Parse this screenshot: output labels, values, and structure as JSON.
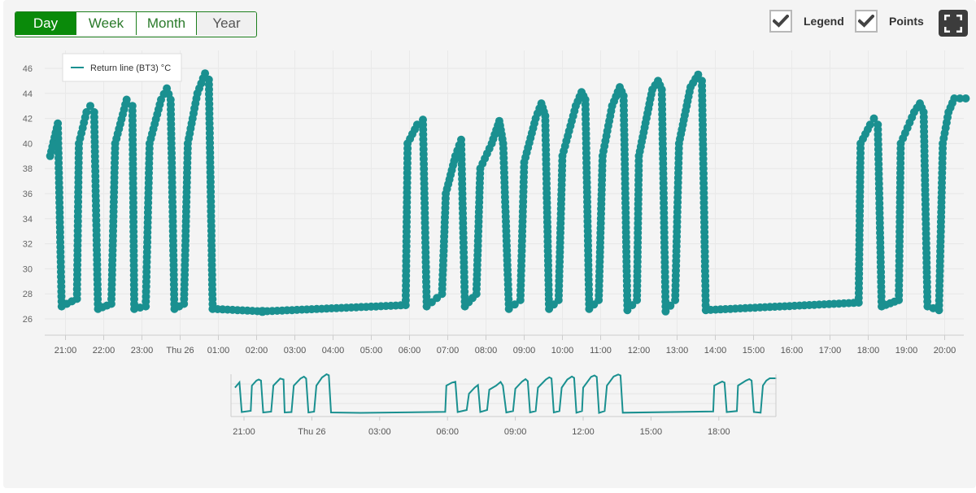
{
  "range_buttons": [
    {
      "label": "Day",
      "state": "active"
    },
    {
      "label": "Week",
      "state": "normal"
    },
    {
      "label": "Month",
      "state": "normal"
    },
    {
      "label": "Year",
      "state": "muted"
    }
  ],
  "toggles": {
    "legend": {
      "label": "Legend",
      "checked": true
    },
    "points": {
      "label": "Points",
      "checked": true
    }
  },
  "icons": {
    "checkbox": "check-icon",
    "fullscreen": "fullscreen-icon"
  },
  "colors": {
    "series": "#1a9090",
    "active_button": "#0a8a0a",
    "button_border": "#1d7f1d"
  },
  "chart_data": {
    "type": "line",
    "title": "",
    "xlabel": "",
    "ylabel": "",
    "legend": "top-left",
    "grid": true,
    "points_shown": true,
    "ylim": [
      25,
      47
    ],
    "xlim": [
      "20:35",
      "20:35 next day"
    ],
    "y_ticks": [
      26,
      28,
      30,
      32,
      34,
      36,
      38,
      40,
      42,
      44,
      46
    ],
    "x_tick_labels": [
      "21:00",
      "22:00",
      "23:00",
      "Thu 26",
      "01:00",
      "02:00",
      "03:00",
      "04:00",
      "05:00",
      "06:00",
      "07:00",
      "08:00",
      "09:00",
      "10:00",
      "11:00",
      "12:00",
      "13:00",
      "14:00",
      "15:00",
      "16:00",
      "17:00",
      "18:00",
      "19:00",
      "20:00"
    ],
    "navigator_tick_labels": [
      "21:00",
      "Thu 26",
      "03:00",
      "06:00",
      "09:00",
      "12:00",
      "15:00",
      "18:00"
    ],
    "series": [
      {
        "name": "Return line (BT3) °C",
        "note_points": "time in hours since 20:00 on Wed 25; readings",
        "points": [
          [
            0.6,
            39
          ],
          [
            0.8,
            41.6
          ],
          [
            0.9,
            27
          ],
          [
            1.3,
            27.6
          ],
          [
            1.35,
            40
          ],
          [
            1.55,
            42.5
          ],
          [
            1.65,
            43
          ],
          [
            1.75,
            42.5
          ],
          [
            1.85,
            26.8
          ],
          [
            2.2,
            27.2
          ],
          [
            2.3,
            40
          ],
          [
            2.6,
            43.5
          ],
          [
            2.75,
            43
          ],
          [
            2.8,
            26.8
          ],
          [
            3.1,
            27
          ],
          [
            3.2,
            40
          ],
          [
            3.5,
            43.5
          ],
          [
            3.65,
            44.4
          ],
          [
            3.75,
            43.5
          ],
          [
            3.85,
            26.8
          ],
          [
            4.1,
            27.2
          ],
          [
            4.2,
            40
          ],
          [
            4.45,
            44
          ],
          [
            4.65,
            45.6
          ],
          [
            4.75,
            45.1
          ],
          [
            4.85,
            26.8
          ],
          [
            6.15,
            26.6
          ],
          [
            9.9,
            27.1
          ],
          [
            9.95,
            40
          ],
          [
            10.2,
            41.5
          ],
          [
            10.35,
            41.9
          ],
          [
            10.45,
            27
          ],
          [
            10.85,
            28
          ],
          [
            10.95,
            36
          ],
          [
            11.2,
            39
          ],
          [
            11.35,
            40.3
          ],
          [
            11.45,
            27
          ],
          [
            11.75,
            28
          ],
          [
            11.85,
            38
          ],
          [
            12.15,
            40
          ],
          [
            12.35,
            41.8
          ],
          [
            12.45,
            40
          ],
          [
            12.6,
            26.8
          ],
          [
            12.9,
            27.5
          ],
          [
            13,
            38.5
          ],
          [
            13.3,
            42
          ],
          [
            13.45,
            43.2
          ],
          [
            13.55,
            42.2
          ],
          [
            13.65,
            26.8
          ],
          [
            13.9,
            27.5
          ],
          [
            14,
            39
          ],
          [
            14.35,
            43
          ],
          [
            14.5,
            44.1
          ],
          [
            14.6,
            43.5
          ],
          [
            14.7,
            26.8
          ],
          [
            14.95,
            27.5
          ],
          [
            15.05,
            39
          ],
          [
            15.3,
            43
          ],
          [
            15.5,
            44.5
          ],
          [
            15.6,
            43.8
          ],
          [
            15.7,
            26.7
          ],
          [
            15.95,
            27.5
          ],
          [
            16,
            39
          ],
          [
            16.35,
            44.3
          ],
          [
            16.5,
            45
          ],
          [
            16.6,
            44.3
          ],
          [
            16.7,
            26.6
          ],
          [
            16.95,
            27.5
          ],
          [
            17.05,
            40
          ],
          [
            17.35,
            44.5
          ],
          [
            17.55,
            45.5
          ],
          [
            17.65,
            45
          ],
          [
            17.75,
            26.7
          ],
          [
            21.75,
            27.3
          ],
          [
            21.8,
            40
          ],
          [
            22.05,
            41.5
          ],
          [
            22.15,
            42
          ],
          [
            22.25,
            41.5
          ],
          [
            22.35,
            27
          ],
          [
            22.8,
            27.5
          ],
          [
            22.85,
            40
          ],
          [
            23.2,
            42.5
          ],
          [
            23.35,
            43.2
          ],
          [
            23.45,
            42.5
          ],
          [
            23.55,
            27
          ],
          [
            23.85,
            26.7
          ],
          [
            23.95,
            40
          ],
          [
            24.1,
            42.5
          ],
          [
            24.25,
            43.6
          ],
          [
            24.55,
            43.6
          ]
        ]
      }
    ]
  }
}
